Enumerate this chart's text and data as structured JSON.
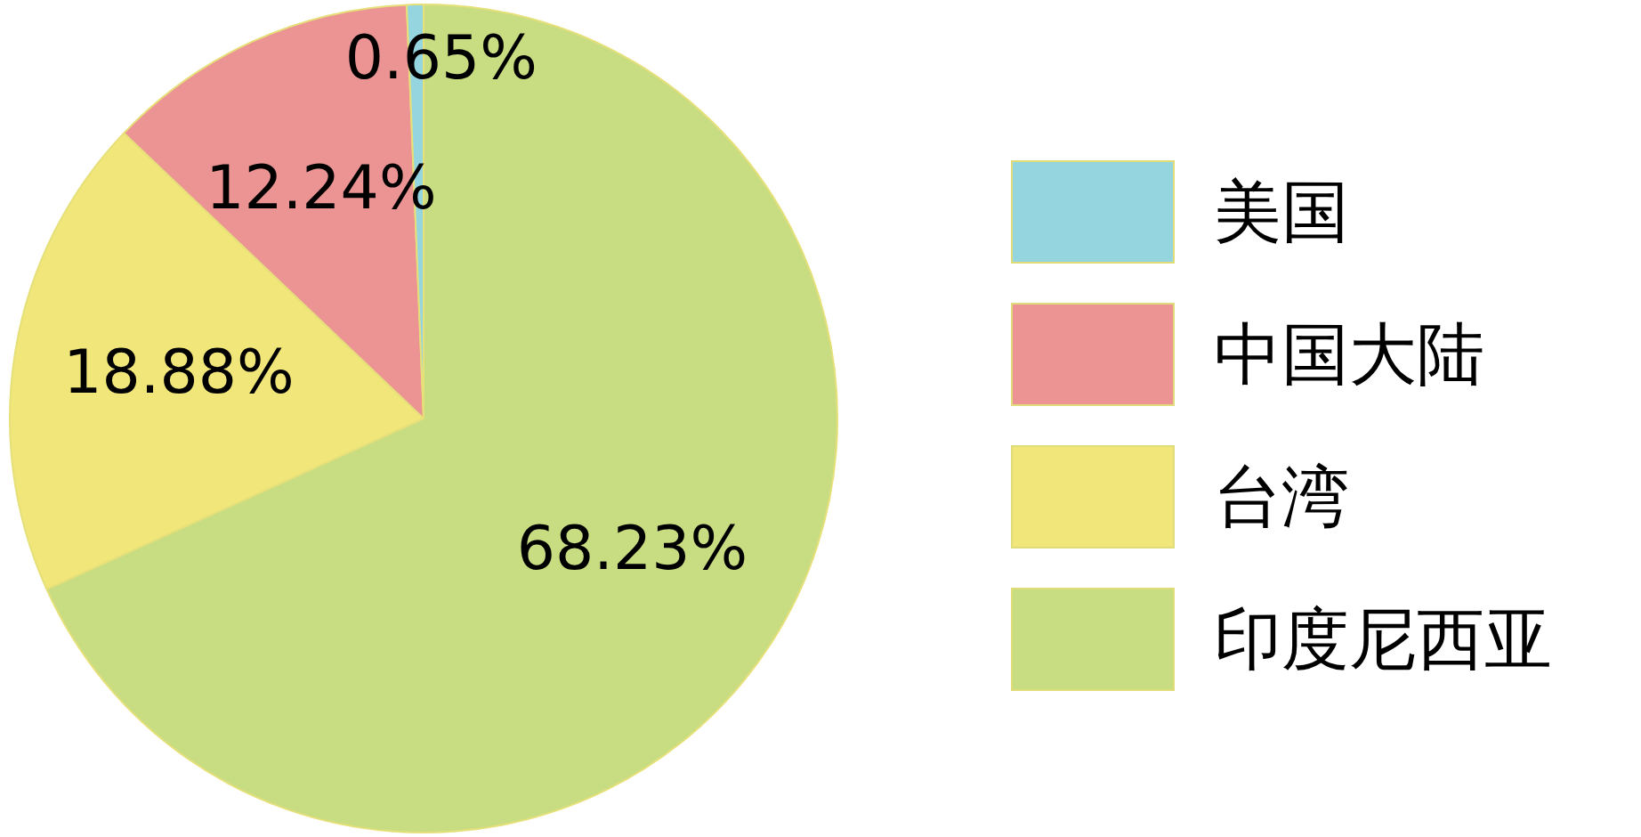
{
  "chart_data": {
    "type": "pie",
    "categories": [
      "美国",
      "中国大陆",
      "台湾",
      "印度尼西亚"
    ],
    "values": [
      0.65,
      12.24,
      18.88,
      68.23
    ],
    "colors": [
      "#95d5e0",
      "#ec9494",
      "#f0e67a",
      "#c8dc82"
    ],
    "value_labels": [
      "0.65%",
      "12.24%",
      "18.88%",
      "68.23%"
    ],
    "legend": "right"
  }
}
